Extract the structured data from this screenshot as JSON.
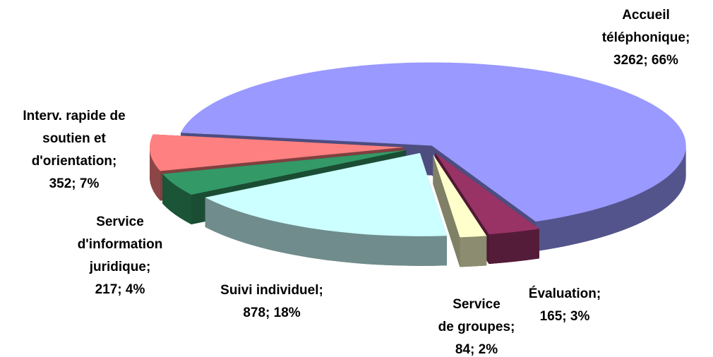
{
  "chart_data": {
    "type": "pie3d",
    "categories": [
      [
        "Accueil",
        "téléphonique;"
      ],
      [
        "Évaluation;"
      ],
      [
        "Service",
        "de groupes;"
      ],
      [
        "Suivi individuel;"
      ],
      [
        "Service",
        "d'information",
        "juridique;"
      ],
      [
        "Interv. rapide de",
        "soutien et",
        "d'orientation;"
      ]
    ],
    "values": [
      3262,
      165,
      84,
      878,
      217,
      352
    ],
    "value_labels": [
      "3262; 66%",
      "165; 3%",
      "84; 2%",
      "878; 18%",
      "217; 4%",
      "352; 7%"
    ],
    "colors": [
      "#9999ff",
      "#993366",
      "#ffffcc",
      "#ccffff",
      "#339966",
      "#ff8080"
    ]
  }
}
